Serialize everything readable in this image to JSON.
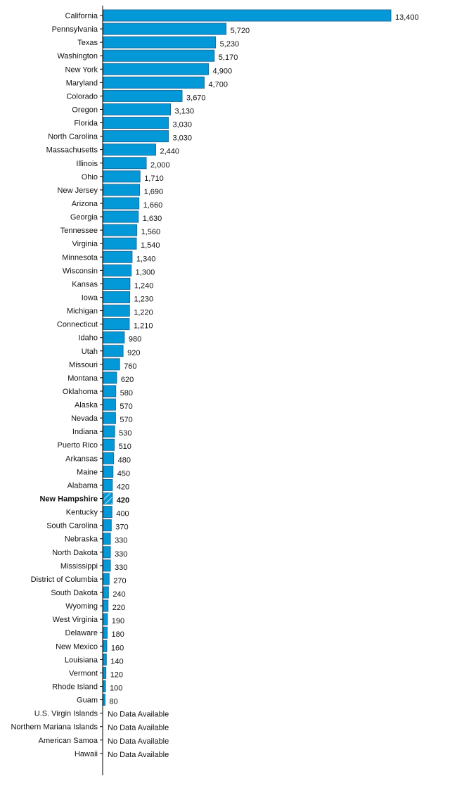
{
  "chart_data": {
    "type": "bar",
    "orientation": "horizontal",
    "highlight": "New Hampshire",
    "no_data_label": "No Data Available",
    "colors": {
      "bar": "#0399d8",
      "bar_border": "#1b6c9c",
      "axis": "#000000"
    },
    "categories": [
      "California",
      "Pennsylvania",
      "Texas",
      "Washington",
      "New York",
      "Maryland",
      "Colorado",
      "Oregon",
      "Florida",
      "North Carolina",
      "Massachusetts",
      "Illinois",
      "Ohio",
      "New Jersey",
      "Arizona",
      "Georgia",
      "Tennessee",
      "Virginia",
      "Minnesota",
      "Wisconsin",
      "Kansas",
      "Iowa",
      "Michigan",
      "Connecticut",
      "Idaho",
      "Utah",
      "Missouri",
      "Montana",
      "Oklahoma",
      "Alaska",
      "Nevada",
      "Indiana",
      "Puerto Rico",
      "Arkansas",
      "Maine",
      "Alabama",
      "New Hampshire",
      "Kentucky",
      "South Carolina",
      "Nebraska",
      "North Dakota",
      "Mississippi",
      "District of Columbia",
      "South Dakota",
      "Wyoming",
      "West Virginia",
      "Delaware",
      "New Mexico",
      "Louisiana",
      "Vermont",
      "Rhode Island",
      "Guam",
      "U.S. Virgin Islands",
      "Northern Mariana Islands",
      "American Samoa",
      "Hawaii"
    ],
    "values": [
      13400,
      5720,
      5230,
      5170,
      4900,
      4700,
      3670,
      3130,
      3030,
      3030,
      2440,
      2000,
      1710,
      1690,
      1660,
      1630,
      1560,
      1540,
      1340,
      1300,
      1240,
      1230,
      1220,
      1210,
      980,
      920,
      760,
      620,
      580,
      570,
      570,
      530,
      510,
      480,
      450,
      420,
      420,
      400,
      370,
      330,
      330,
      330,
      270,
      240,
      220,
      190,
      180,
      160,
      140,
      120,
      100,
      80,
      null,
      null,
      null,
      null
    ],
    "xlim": [
      0,
      13400
    ]
  }
}
